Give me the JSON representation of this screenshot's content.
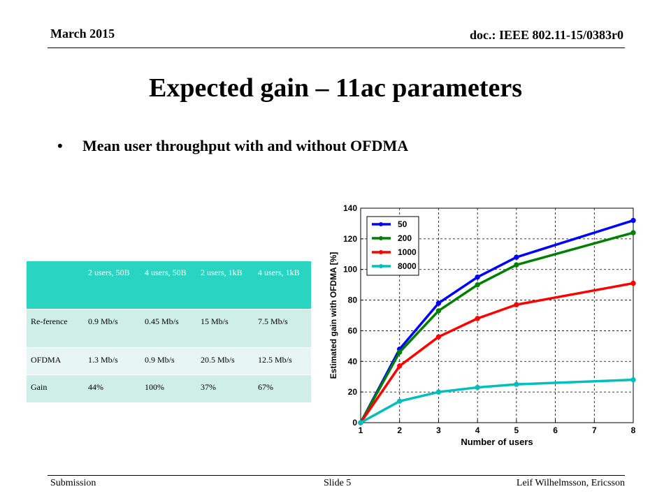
{
  "header": {
    "date": "March 2015",
    "doc": "doc.: IEEE 802.11-15/0383r0"
  },
  "title": "Expected gain – 11ac parameters",
  "bullet": {
    "symbol": "•",
    "text": "Mean user throughput with and without OFDMA"
  },
  "table": {
    "headers": [
      "",
      "2 users, 50B",
      "4 users, 50B",
      "2 users, 1kB",
      "4 users, 1kB"
    ],
    "rows": [
      [
        "Re-ference",
        "0.9 Mb/s",
        "0.45 Mb/s",
        "15 Mb/s",
        "7.5 Mb/s"
      ],
      [
        "OFDMA",
        "1.3 Mb/s",
        "0.9 Mb/s",
        "20.5 Mb/s",
        "12.5 Mb/s"
      ],
      [
        "Gain",
        "44%",
        "100%",
        "37%",
        "67%"
      ]
    ]
  },
  "chart_data": {
    "type": "line",
    "title": "",
    "xlabel": "Number of users",
    "ylabel": "Estimated gain with OFDMA [%]",
    "xlim": [
      1,
      8
    ],
    "ylim": [
      0,
      140
    ],
    "xticks": [
      1,
      2,
      3,
      4,
      5,
      6,
      7,
      8
    ],
    "yticks": [
      0,
      20,
      40,
      60,
      80,
      100,
      120,
      140
    ],
    "grid": true,
    "legend_position": "top-left",
    "x": [
      1,
      2,
      3,
      4,
      5,
      8
    ],
    "series": [
      {
        "name": "50",
        "color": "#0000ff",
        "values": [
          0,
          48,
          78,
          95,
          108,
          132
        ]
      },
      {
        "name": "200",
        "color": "#008000",
        "values": [
          0,
          46,
          73,
          90,
          103,
          124
        ]
      },
      {
        "name": "1000",
        "color": "#ff0000",
        "values": [
          0,
          37,
          56,
          68,
          77,
          91
        ]
      },
      {
        "name": "8000",
        "color": "#00bfbf",
        "values": [
          0,
          14,
          20,
          23,
          25,
          28
        ]
      }
    ]
  },
  "footer": {
    "left": "Submission",
    "mid": "Slide 5",
    "right": "Leif Wilhelmsson, Ericsson"
  }
}
